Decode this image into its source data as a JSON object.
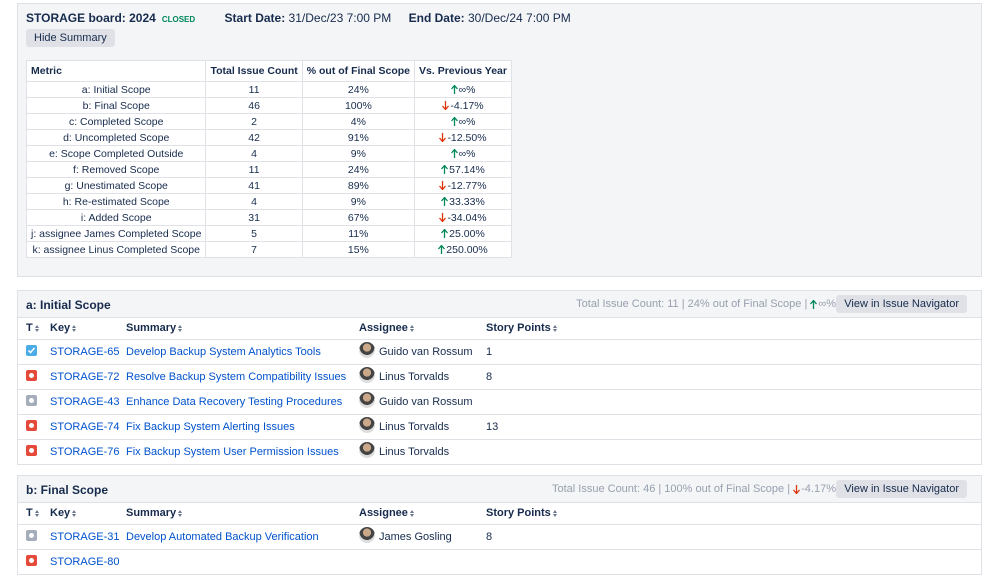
{
  "header": {
    "board": "STORAGE board: 2024",
    "status": "CLOSED",
    "start_label": "Start Date:",
    "start": "31/Dec/23 7:00 PM",
    "end_label": "End Date:",
    "end": "30/Dec/24 7:00 PM",
    "button": "Hide Summary"
  },
  "summary": {
    "columns": [
      "Metric",
      "Total Issue Count",
      "% out of Final Scope",
      "Vs. Previous Year"
    ],
    "rows": [
      [
        "a: Initial Scope",
        "11",
        "24%",
        "∞%"
      ],
      [
        "b: Final Scope",
        "46",
        "100%",
        "-4.17%"
      ],
      [
        "c: Completed Scope",
        "2",
        "4%",
        "∞%"
      ],
      [
        "d: Uncompleted Scope",
        "42",
        "91%",
        "-12.50%"
      ],
      [
        "e: Scope Completed Outside",
        "4",
        "9%",
        "∞%"
      ],
      [
        "f: Removed Scope",
        "11",
        "24%",
        "57.14%"
      ],
      [
        "g: Unestimated Scope",
        "41",
        "89%",
        "-12.77%"
      ],
      [
        "h: Re-estimated Scope",
        "4",
        "9%",
        "33.33%"
      ],
      [
        "i: Added Scope",
        "31",
        "67%",
        "-34.04%"
      ],
      [
        "j: assignee James Completed Scope",
        "5",
        "11%",
        "25.00%"
      ],
      [
        "k: assignee Linus Completed Scope",
        "7",
        "15%",
        "250.00%"
      ]
    ]
  },
  "sections": [
    {
      "title": "a: Initial Scope",
      "stats": "Total Issue Count: 11 | 24% out of Final Scope |",
      "trend": "∞%",
      "button": "View in Issue Navigator",
      "columns": [
        "T",
        "Key",
        "Summary",
        "Assignee",
        "Story Points"
      ],
      "issues": [
        {
          "type": "task",
          "key": "STORAGE-65",
          "summary": "Develop Backup System Analytics Tools",
          "assignee": "Guido van Rossum",
          "points": "1"
        },
        {
          "type": "bug",
          "key": "STORAGE-72",
          "summary": "Resolve Backup System Compatibility Issues",
          "assignee": "Linus Torvalds",
          "points": "8"
        },
        {
          "type": "other",
          "key": "STORAGE-43",
          "summary": "Enhance Data Recovery Testing Procedures",
          "assignee": "Guido van Rossum",
          "points": null
        },
        {
          "type": "bug",
          "key": "STORAGE-74",
          "summary": "Fix Backup System Alerting Issues",
          "assignee": "Linus Torvalds",
          "points": "13"
        },
        {
          "type": "bug",
          "key": "STORAGE-76",
          "summary": "Fix Backup System User Permission Issues",
          "assignee": "Linus Torvalds",
          "points": null
        }
      ]
    },
    {
      "title": "b: Final Scope",
      "stats": "Total Issue Count: 46 | 100% out of Final Scope |",
      "trend": "-4.17%",
      "button": "View in Issue Navigator",
      "columns": [
        "T",
        "Key",
        "Summary",
        "Assignee",
        "Story Points"
      ],
      "issues": [
        {
          "type": "other",
          "key": "STORAGE-31",
          "summary": "Develop Automated Backup Verification",
          "assignee": "James Gosling",
          "points": "8"
        },
        {
          "type": "bug",
          "key": "STORAGE-80",
          "summary": "",
          "assignee": "",
          "points": null
        }
      ]
    }
  ]
}
